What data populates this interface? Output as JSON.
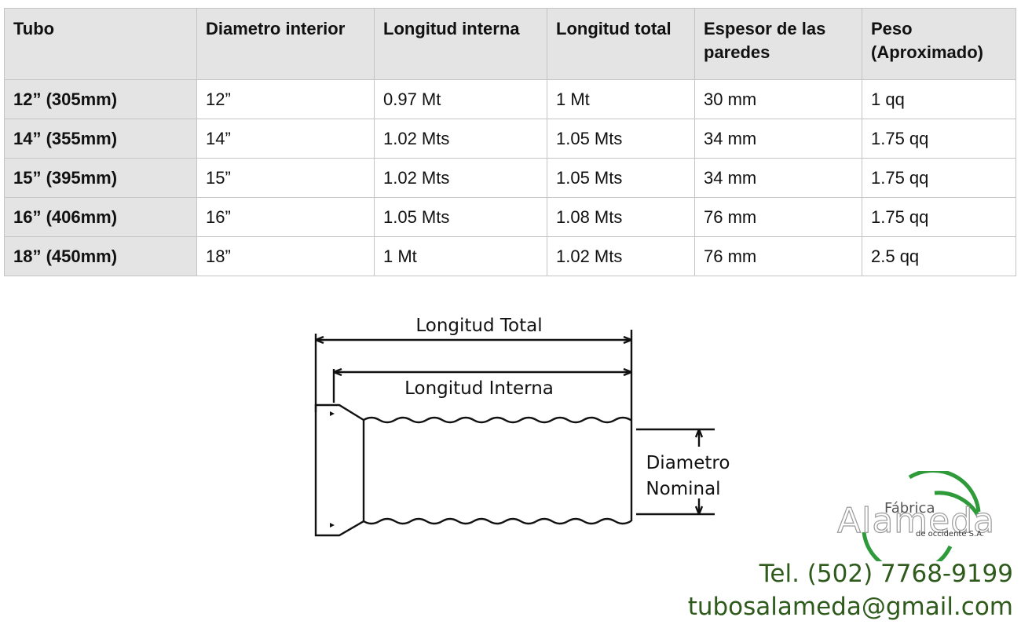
{
  "table": {
    "headers": [
      "Tubo",
      "Diametro interior",
      "Longitud interna",
      "Longitud total",
      "Espesor de las paredes",
      "Peso (Aproximado)"
    ],
    "rows": [
      [
        "12” (305mm)",
        "12”",
        "0.97 Mt",
        "1 Mt",
        "30 mm",
        "1 qq"
      ],
      [
        "14” (355mm)",
        "14”",
        "1.02 Mts",
        "1.05 Mts",
        "34 mm",
        "1.75 qq"
      ],
      [
        "15” (395mm)",
        "15”",
        "1.02 Mts",
        "1.05 Mts",
        "34 mm",
        "1.75 qq"
      ],
      [
        "16” (406mm)",
        "16”",
        "1.05 Mts",
        "1.08 Mts",
        "76 mm",
        "1.75 qq"
      ],
      [
        "18” (450mm)",
        "18”",
        "1 Mt",
        "1.02 Mts",
        "76 mm",
        "2.5 qq"
      ]
    ]
  },
  "diagram": {
    "label_total": "Longitud Total",
    "label_interna": "Longitud Interna",
    "label_diametro_1": "Diametro",
    "label_diametro_2": "Nominal"
  },
  "logo": {
    "line1": "Fábrica",
    "line2": "Alameda",
    "line3": "de occidente S.A.",
    "colors": {
      "ring": "#2f9a3a",
      "text": "#9a9a9a"
    }
  },
  "contact": {
    "phone": "Tel. (502) 7768-9199",
    "email": "tubosalameda@gmail.com",
    "color": "#2e5a1c"
  }
}
